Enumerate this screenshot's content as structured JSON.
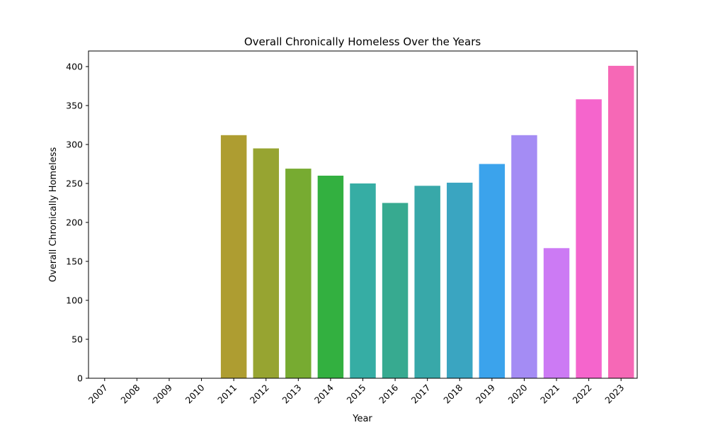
{
  "chart_data": {
    "type": "bar",
    "title": "Overall Chronically Homeless Over the Years",
    "xlabel": "Year",
    "ylabel": "Overall Chronically Homeless",
    "categories": [
      "2007",
      "2008",
      "2009",
      "2010",
      "2011",
      "2012",
      "2013",
      "2014",
      "2015",
      "2016",
      "2017",
      "2018",
      "2019",
      "2020",
      "2021",
      "2022",
      "2023"
    ],
    "values": [
      0,
      0,
      0,
      0,
      312,
      295,
      269,
      260,
      250,
      225,
      247,
      251,
      275,
      312,
      167,
      358,
      401
    ],
    "colors": [
      "#f77189",
      "#f7754f",
      "#dc8932",
      "#c39532",
      "#ae9d31",
      "#97a431",
      "#77ab31",
      "#33b040",
      "#36ada4",
      "#37aa90",
      "#38a8a9",
      "#3aa5c1",
      "#3ba3ec",
      "#a48cf4",
      "#cc7af4",
      "#f565cc",
      "#f668b6"
    ],
    "ylim": [
      0,
      420
    ],
    "yticks": [
      0,
      50,
      100,
      150,
      200,
      250,
      300,
      350,
      400
    ],
    "grid": false,
    "legend": "none"
  }
}
